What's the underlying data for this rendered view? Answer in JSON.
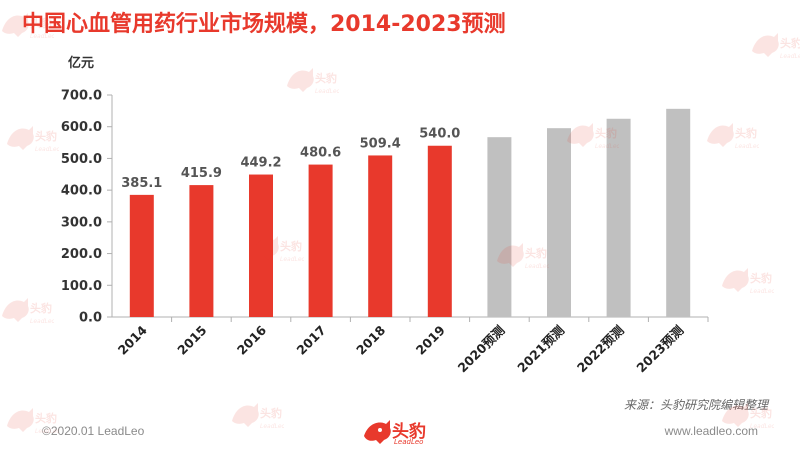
{
  "header": {
    "title": "中国心血管用药行业市场规模，2014-2023预测"
  },
  "chart_data": {
    "type": "bar",
    "unit_label": "亿元",
    "categories": [
      "2014",
      "2015",
      "2016",
      "2017",
      "2018",
      "2019",
      "2020预测",
      "2021预测",
      "2022预测",
      "2023预测"
    ],
    "values": [
      385.1,
      415.9,
      449.2,
      480.6,
      509.4,
      540.0,
      567.0,
      595.4,
      625.1,
      656.4
    ],
    "value_labels": [
      "385.1",
      "415.9",
      "449.2",
      "480.6",
      "509.4",
      "540.0",
      "",
      "",
      "",
      ""
    ],
    "projected": [
      false,
      false,
      false,
      false,
      false,
      false,
      true,
      true,
      true,
      true
    ],
    "y_ticks": [
      "0.0",
      "100.0",
      "200.0",
      "300.0",
      "400.0",
      "500.0",
      "600.0",
      "700.0"
    ],
    "ylim": [
      0,
      700
    ],
    "grid": false,
    "colors": {
      "actual": "#e8392c",
      "projected": "#c0c0c0",
      "axis": "#b0b0b0",
      "label": "#555555"
    }
  },
  "source_note": "来源：头豹研究院编辑整理",
  "footer": {
    "copyright": "©2020.01 LeadLeo",
    "website": "www.leadleo.com",
    "logo_text": "头豹",
    "logo_sub": "LeadLeo"
  },
  "watermark": {
    "text": "头豹",
    "sub": "LeadLeo"
  }
}
